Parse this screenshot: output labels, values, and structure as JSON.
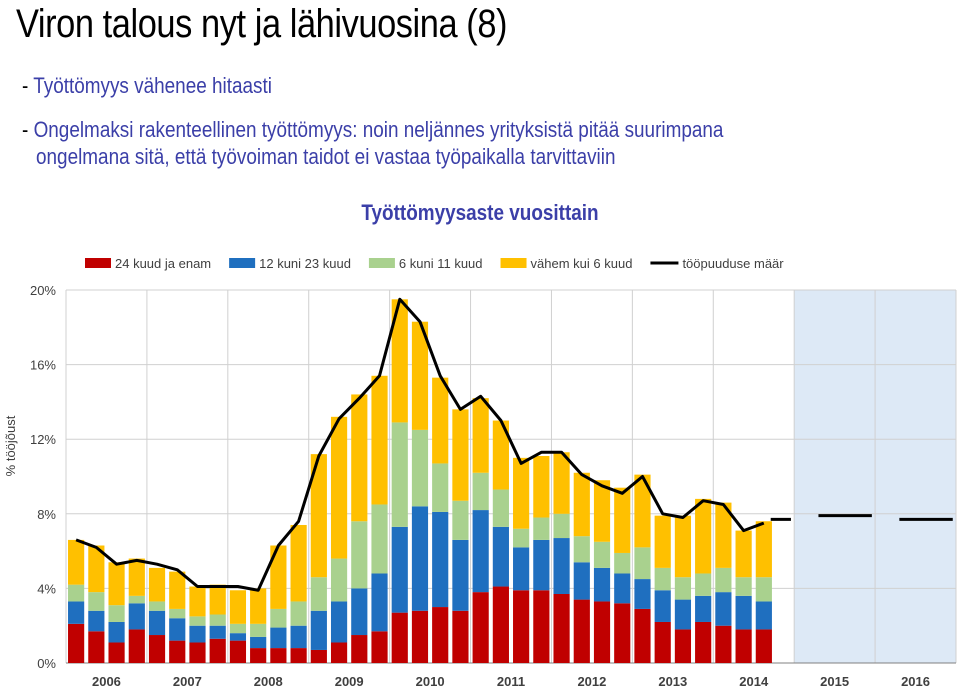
{
  "page": {
    "title": "Viron talous nyt ja lähivuosina (8)",
    "bullets": [
      "Työttömyys vähenee hitaasti",
      "Ongelmaksi rakenteellinen työttömyys: noin neljännes yrityksistä pitää suurimpana",
      "ongelmana sitä, että työvoiman taidot ei vastaa työpaikalla tarvittaviin"
    ]
  },
  "chart_data": {
    "type": "bar",
    "title": "Työttömyysaste vuosittain",
    "ylabel": "% tööjõust",
    "ylim": [
      0,
      20
    ],
    "yticks": [
      0,
      4,
      8,
      12,
      16,
      20
    ],
    "ytick_labels": [
      "0%",
      "4%",
      "8%",
      "12%",
      "16%",
      "20%"
    ],
    "years": [
      "2006",
      "2007",
      "2008",
      "2009",
      "2010",
      "2011",
      "2012",
      "2013",
      "2014",
      "2015",
      "2016"
    ],
    "quarters_per_year": 4,
    "forecast_years": [
      "2015",
      "2016"
    ],
    "legend_position": "top",
    "colors": {
      "24 kuud ja enam": "#c00000",
      "12 kuni 23 kuud": "#1f6fbf",
      "6 kuni 11 kuud": "#a9d18e",
      "vähem kui 6 kuud": "#ffc000",
      "line": "#000000",
      "forecast_shade": "#dde9f6"
    },
    "series": [
      {
        "name": "24 kuud ja enam",
        "values": [
          2.1,
          1.7,
          1.1,
          1.8,
          1.5,
          1.2,
          1.1,
          1.3,
          1.2,
          0.8,
          0.8,
          0.8,
          0.7,
          1.1,
          1.5,
          1.7,
          2.7,
          2.8,
          3.0,
          2.8,
          3.8,
          4.1,
          3.9,
          3.9,
          3.7,
          3.4,
          3.3,
          3.2,
          2.9,
          2.2,
          1.8,
          2.2,
          2.0,
          1.8,
          1.8
        ]
      },
      {
        "name": "12 kuni 23 kuud",
        "values": [
          1.2,
          1.1,
          1.1,
          1.4,
          1.3,
          1.2,
          0.9,
          0.7,
          0.4,
          0.6,
          1.1,
          1.2,
          2.1,
          2.2,
          2.5,
          3.1,
          4.6,
          5.6,
          5.1,
          3.8,
          4.4,
          3.2,
          2.3,
          2.7,
          3.0,
          2.0,
          1.8,
          1.6,
          1.6,
          1.7,
          1.6,
          1.4,
          1.8,
          1.8,
          1.5
        ]
      },
      {
        "name": "6 kuni 11 kuud",
        "values": [
          0.9,
          1.0,
          0.9,
          0.4,
          0.5,
          0.5,
          0.5,
          0.6,
          0.5,
          0.7,
          1.0,
          1.3,
          1.8,
          2.3,
          3.6,
          3.7,
          5.6,
          4.1,
          2.6,
          2.1,
          2.0,
          2.0,
          1.0,
          1.2,
          1.3,
          1.4,
          1.4,
          1.1,
          1.7,
          1.2,
          1.2,
          1.2,
          1.3,
          1.0,
          1.3
        ]
      },
      {
        "name": "vähem kui 6 kuud",
        "values": [
          2.4,
          2.5,
          2.3,
          2.0,
          1.8,
          2.0,
          1.6,
          1.6,
          1.8,
          1.9,
          3.4,
          4.1,
          6.6,
          7.6,
          6.8,
          6.9,
          6.6,
          5.8,
          4.6,
          4.9,
          4.0,
          3.7,
          3.8,
          3.3,
          3.3,
          3.4,
          3.3,
          3.5,
          3.9,
          2.8,
          3.3,
          4.0,
          3.5,
          2.5,
          3.0
        ]
      }
    ],
    "line": {
      "name": "tööpuuduse määr",
      "values": [
        6.6,
        6.2,
        5.3,
        5.5,
        5.3,
        5.0,
        4.1,
        4.1,
        4.1,
        3.9,
        6.3,
        7.6,
        11.1,
        13.1,
        14.2,
        15.4,
        19.5,
        18.3,
        15.4,
        13.6,
        14.3,
        13.0,
        10.7,
        11.3,
        11.3,
        10.1,
        9.5,
        9.1,
        10.0,
        8.0,
        7.8,
        8.7,
        8.5,
        7.1,
        7.5
      ],
      "forecast_values": [
        7.7,
        7.9,
        7.7
      ]
    }
  }
}
